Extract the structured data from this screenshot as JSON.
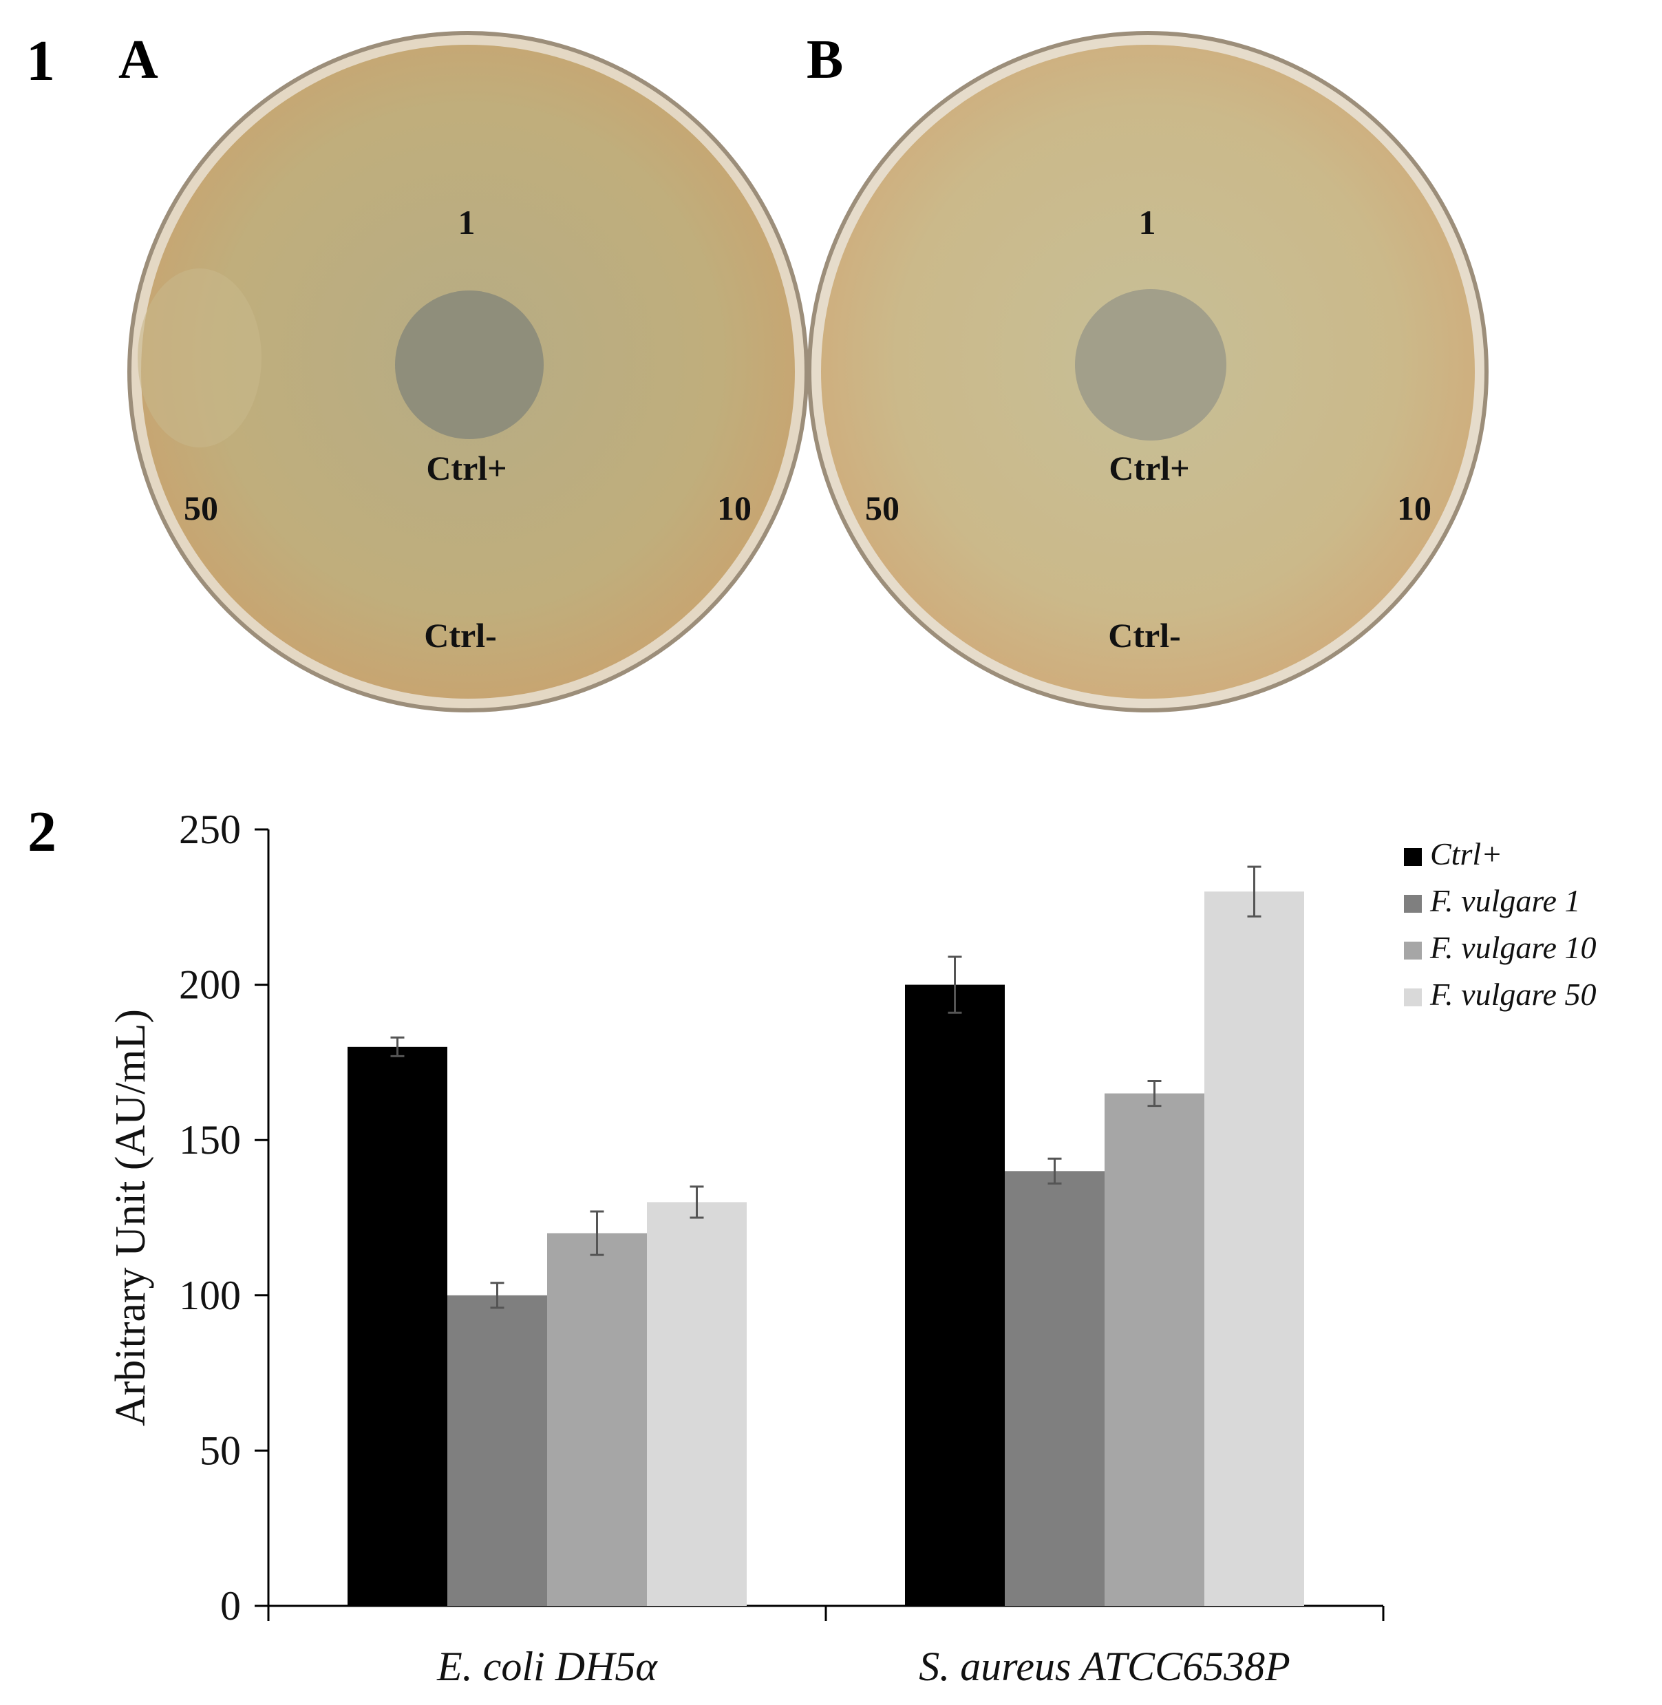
{
  "figure": {
    "panel1_number": "1",
    "panel2_number": "2"
  },
  "plates": {
    "colors": {
      "agar": "#c2b07e",
      "rim": "#d9cbb0",
      "inhibition_zone": "#8f8d78"
    },
    "items": [
      {
        "letter": "A",
        "labels": {
          "top": "1",
          "center": "Ctrl+",
          "left": "50",
          "right": "10",
          "bottom": "Ctrl-"
        }
      },
      {
        "letter": "B",
        "labels": {
          "top": "1",
          "center": "Ctrl+",
          "left": "50",
          "right": "10",
          "bottom": "Ctrl-"
        }
      }
    ]
  },
  "chart_data": {
    "type": "bar",
    "title": "",
    "xlabel": "",
    "ylabel": "Arbitrary Unit (AU/mL)",
    "ylim": [
      0,
      250
    ],
    "yticks": [
      0,
      50,
      100,
      150,
      200,
      250
    ],
    "grid": false,
    "legend_position": "top-right",
    "categories": [
      "E. coli DH5α",
      "S. aureus ATCC6538P"
    ],
    "series": [
      {
        "name": "Ctrl+",
        "color": "#000000",
        "values": [
          180,
          200
        ],
        "errors": [
          3,
          9
        ]
      },
      {
        "name": "F. vulgare 1",
        "color": "#7f7f7f",
        "values": [
          100,
          140
        ],
        "errors": [
          4,
          4
        ]
      },
      {
        "name": "F. vulgare 10",
        "color": "#a6a6a6",
        "values": [
          120,
          165
        ],
        "errors": [
          7,
          4
        ]
      },
      {
        "name": "F. vulgare 50",
        "color": "#d9d9d9",
        "values": [
          130,
          230
        ],
        "errors": [
          5,
          8
        ]
      }
    ]
  }
}
